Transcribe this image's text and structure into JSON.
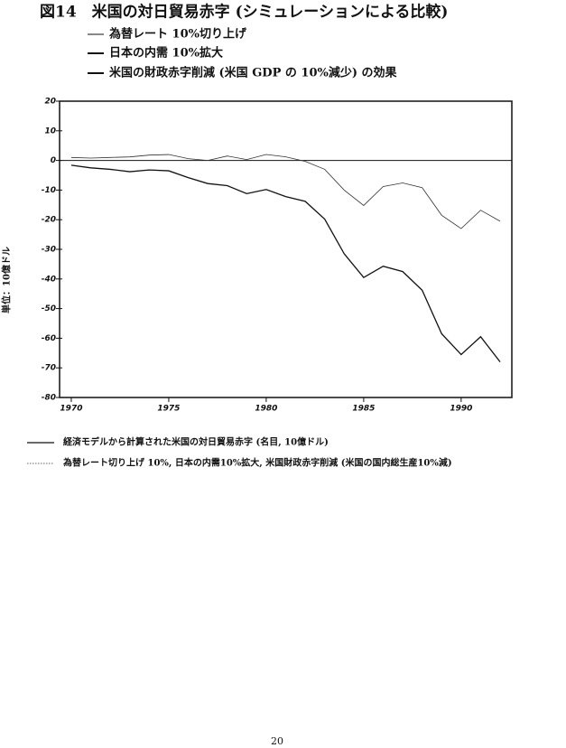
{
  "chart_data": {
    "type": "line",
    "title": "図14　米国の対日貿易赤字 (シミュレーションによる比較)",
    "annotations": [
      "為替レート 10%切り上げ",
      "日本の内需 10%拡大",
      "米国の財政赤字削減 (米国 GDP の 10%減少) の効果"
    ],
    "y_label": "単位：10億ドル",
    "x": [
      1970,
      1971,
      1972,
      1973,
      1974,
      1975,
      1976,
      1977,
      1978,
      1979,
      1980,
      1981,
      1982,
      1983,
      1984,
      1985,
      1986,
      1987,
      1988,
      1989,
      1990,
      1991,
      1992
    ],
    "series": [
      {
        "name": "経済モデルから計算された米国の対日貿易赤字 (名目, 10億ドル)",
        "color": "#111111",
        "dash": "solid",
        "values": [
          -1.6,
          -2.5,
          -3,
          -3.8,
          -3.2,
          -3.5,
          -5.8,
          -7.8,
          -8.5,
          -11.2,
          -9.8,
          -12.2,
          -13.8,
          -19.8,
          -31.5,
          -39.5,
          -35.7,
          -37.5,
          -43.8,
          -58.5,
          -65.5,
          -59.5,
          -68
        ]
      },
      {
        "name": "為替レート切り上げ 10%, 日本の内需10%拡大, 米国財政赤字削減 (米国の国内総生産10%減)",
        "color": "#333333",
        "dash": "dotted",
        "values": [
          1,
          0.8,
          1,
          1.2,
          1.8,
          2,
          0.6,
          0,
          1.5,
          0.3,
          2,
          1.2,
          -0.3,
          -3,
          -10,
          -15.2,
          -8.8,
          -7.6,
          -9.2,
          -18.5,
          -23,
          -16.8,
          -20.5
        ]
      }
    ],
    "xlim": [
      1969.4,
      1992.6
    ],
    "xticks": [
      1970,
      1975,
      1980,
      1985,
      1990
    ],
    "ylim": [
      -80,
      20
    ],
    "yticks": [
      20,
      10,
      0,
      -10,
      -20,
      -30,
      -40,
      -50,
      -60,
      -70,
      -80
    ],
    "zero_line": true
  },
  "page_number": "20"
}
